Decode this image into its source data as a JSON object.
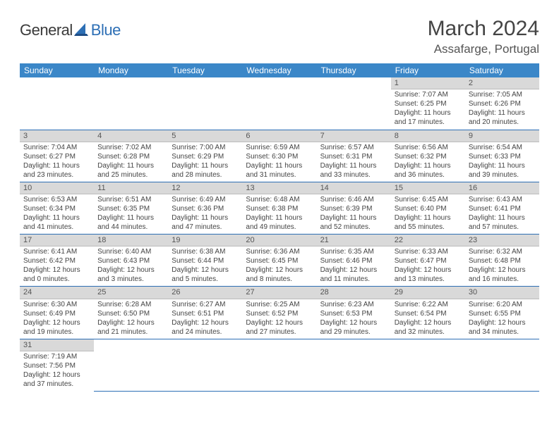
{
  "colors": {
    "header_bg": "#3b87c8",
    "header_text": "#ffffff",
    "daynum_bg": "#d9d9d9",
    "daynum_border": "#bcbcbc",
    "row_border": "#2d6fb5",
    "text": "#444444",
    "logo_blue": "#2d6fb5",
    "logo_dark": "#3a3a3a"
  },
  "logo": {
    "text_general": "General",
    "text_blue": "Blue"
  },
  "title": "March 2024",
  "location": "Assafarge, Portugal",
  "weekdays": [
    "Sunday",
    "Monday",
    "Tuesday",
    "Wednesday",
    "Thursday",
    "Friday",
    "Saturday"
  ],
  "rows": [
    [
      null,
      null,
      null,
      null,
      null,
      {
        "n": "1",
        "sr": "Sunrise: 7:07 AM",
        "ss": "Sunset: 6:25 PM",
        "d1": "Daylight: 11 hours",
        "d2": "and 17 minutes."
      },
      {
        "n": "2",
        "sr": "Sunrise: 7:05 AM",
        "ss": "Sunset: 6:26 PM",
        "d1": "Daylight: 11 hours",
        "d2": "and 20 minutes."
      }
    ],
    [
      {
        "n": "3",
        "sr": "Sunrise: 7:04 AM",
        "ss": "Sunset: 6:27 PM",
        "d1": "Daylight: 11 hours",
        "d2": "and 23 minutes."
      },
      {
        "n": "4",
        "sr": "Sunrise: 7:02 AM",
        "ss": "Sunset: 6:28 PM",
        "d1": "Daylight: 11 hours",
        "d2": "and 25 minutes."
      },
      {
        "n": "5",
        "sr": "Sunrise: 7:00 AM",
        "ss": "Sunset: 6:29 PM",
        "d1": "Daylight: 11 hours",
        "d2": "and 28 minutes."
      },
      {
        "n": "6",
        "sr": "Sunrise: 6:59 AM",
        "ss": "Sunset: 6:30 PM",
        "d1": "Daylight: 11 hours",
        "d2": "and 31 minutes."
      },
      {
        "n": "7",
        "sr": "Sunrise: 6:57 AM",
        "ss": "Sunset: 6:31 PM",
        "d1": "Daylight: 11 hours",
        "d2": "and 33 minutes."
      },
      {
        "n": "8",
        "sr": "Sunrise: 6:56 AM",
        "ss": "Sunset: 6:32 PM",
        "d1": "Daylight: 11 hours",
        "d2": "and 36 minutes."
      },
      {
        "n": "9",
        "sr": "Sunrise: 6:54 AM",
        "ss": "Sunset: 6:33 PM",
        "d1": "Daylight: 11 hours",
        "d2": "and 39 minutes."
      }
    ],
    [
      {
        "n": "10",
        "sr": "Sunrise: 6:53 AM",
        "ss": "Sunset: 6:34 PM",
        "d1": "Daylight: 11 hours",
        "d2": "and 41 minutes."
      },
      {
        "n": "11",
        "sr": "Sunrise: 6:51 AM",
        "ss": "Sunset: 6:35 PM",
        "d1": "Daylight: 11 hours",
        "d2": "and 44 minutes."
      },
      {
        "n": "12",
        "sr": "Sunrise: 6:49 AM",
        "ss": "Sunset: 6:36 PM",
        "d1": "Daylight: 11 hours",
        "d2": "and 47 minutes."
      },
      {
        "n": "13",
        "sr": "Sunrise: 6:48 AM",
        "ss": "Sunset: 6:38 PM",
        "d1": "Daylight: 11 hours",
        "d2": "and 49 minutes."
      },
      {
        "n": "14",
        "sr": "Sunrise: 6:46 AM",
        "ss": "Sunset: 6:39 PM",
        "d1": "Daylight: 11 hours",
        "d2": "and 52 minutes."
      },
      {
        "n": "15",
        "sr": "Sunrise: 6:45 AM",
        "ss": "Sunset: 6:40 PM",
        "d1": "Daylight: 11 hours",
        "d2": "and 55 minutes."
      },
      {
        "n": "16",
        "sr": "Sunrise: 6:43 AM",
        "ss": "Sunset: 6:41 PM",
        "d1": "Daylight: 11 hours",
        "d2": "and 57 minutes."
      }
    ],
    [
      {
        "n": "17",
        "sr": "Sunrise: 6:41 AM",
        "ss": "Sunset: 6:42 PM",
        "d1": "Daylight: 12 hours",
        "d2": "and 0 minutes."
      },
      {
        "n": "18",
        "sr": "Sunrise: 6:40 AM",
        "ss": "Sunset: 6:43 PM",
        "d1": "Daylight: 12 hours",
        "d2": "and 3 minutes."
      },
      {
        "n": "19",
        "sr": "Sunrise: 6:38 AM",
        "ss": "Sunset: 6:44 PM",
        "d1": "Daylight: 12 hours",
        "d2": "and 5 minutes."
      },
      {
        "n": "20",
        "sr": "Sunrise: 6:36 AM",
        "ss": "Sunset: 6:45 PM",
        "d1": "Daylight: 12 hours",
        "d2": "and 8 minutes."
      },
      {
        "n": "21",
        "sr": "Sunrise: 6:35 AM",
        "ss": "Sunset: 6:46 PM",
        "d1": "Daylight: 12 hours",
        "d2": "and 11 minutes."
      },
      {
        "n": "22",
        "sr": "Sunrise: 6:33 AM",
        "ss": "Sunset: 6:47 PM",
        "d1": "Daylight: 12 hours",
        "d2": "and 13 minutes."
      },
      {
        "n": "23",
        "sr": "Sunrise: 6:32 AM",
        "ss": "Sunset: 6:48 PM",
        "d1": "Daylight: 12 hours",
        "d2": "and 16 minutes."
      }
    ],
    [
      {
        "n": "24",
        "sr": "Sunrise: 6:30 AM",
        "ss": "Sunset: 6:49 PM",
        "d1": "Daylight: 12 hours",
        "d2": "and 19 minutes."
      },
      {
        "n": "25",
        "sr": "Sunrise: 6:28 AM",
        "ss": "Sunset: 6:50 PM",
        "d1": "Daylight: 12 hours",
        "d2": "and 21 minutes."
      },
      {
        "n": "26",
        "sr": "Sunrise: 6:27 AM",
        "ss": "Sunset: 6:51 PM",
        "d1": "Daylight: 12 hours",
        "d2": "and 24 minutes."
      },
      {
        "n": "27",
        "sr": "Sunrise: 6:25 AM",
        "ss": "Sunset: 6:52 PM",
        "d1": "Daylight: 12 hours",
        "d2": "and 27 minutes."
      },
      {
        "n": "28",
        "sr": "Sunrise: 6:23 AM",
        "ss": "Sunset: 6:53 PM",
        "d1": "Daylight: 12 hours",
        "d2": "and 29 minutes."
      },
      {
        "n": "29",
        "sr": "Sunrise: 6:22 AM",
        "ss": "Sunset: 6:54 PM",
        "d1": "Daylight: 12 hours",
        "d2": "and 32 minutes."
      },
      {
        "n": "30",
        "sr": "Sunrise: 6:20 AM",
        "ss": "Sunset: 6:55 PM",
        "d1": "Daylight: 12 hours",
        "d2": "and 34 minutes."
      }
    ],
    [
      {
        "n": "31",
        "sr": "Sunrise: 7:19 AM",
        "ss": "Sunset: 7:56 PM",
        "d1": "Daylight: 12 hours",
        "d2": "and 37 minutes."
      },
      null,
      null,
      null,
      null,
      null,
      null
    ]
  ]
}
